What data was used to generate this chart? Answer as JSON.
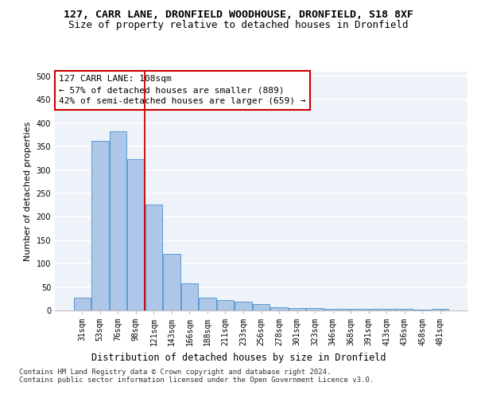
{
  "title": "127, CARR LANE, DRONFIELD WOODHOUSE, DRONFIELD, S18 8XF",
  "subtitle": "Size of property relative to detached houses in Dronfield",
  "xlabel": "Distribution of detached houses by size in Dronfield",
  "ylabel": "Number of detached properties",
  "categories": [
    "31sqm",
    "53sqm",
    "76sqm",
    "98sqm",
    "121sqm",
    "143sqm",
    "166sqm",
    "188sqm",
    "211sqm",
    "233sqm",
    "256sqm",
    "278sqm",
    "301sqm",
    "323sqm",
    "346sqm",
    "368sqm",
    "391sqm",
    "413sqm",
    "436sqm",
    "458sqm",
    "481sqm"
  ],
  "values": [
    28,
    362,
    383,
    323,
    226,
    120,
    58,
    28,
    22,
    18,
    14,
    7,
    5,
    5,
    4,
    4,
    4,
    3,
    3,
    1,
    4
  ],
  "bar_color": "#aec6e8",
  "bar_edge_color": "#5b9bd5",
  "highlight_line_color": "#cc0000",
  "annotation_line1": "127 CARR LANE: 108sqm",
  "annotation_line2": "← 57% of detached houses are smaller (889)",
  "annotation_line3": "42% of semi-detached houses are larger (659) →",
  "annotation_box_color": "#ffffff",
  "annotation_box_edge": "#cc0000",
  "ylim": [
    0,
    510
  ],
  "yticks": [
    0,
    50,
    100,
    150,
    200,
    250,
    300,
    350,
    400,
    450,
    500
  ],
  "footer": "Contains HM Land Registry data © Crown copyright and database right 2024.\nContains public sector information licensed under the Open Government Licence v3.0.",
  "bg_color": "#eef2f9",
  "grid_color": "#ffffff",
  "title_fontsize": 9.5,
  "subtitle_fontsize": 9,
  "xlabel_fontsize": 8.5,
  "ylabel_fontsize": 8,
  "tick_fontsize": 7,
  "annotation_fontsize": 8,
  "footer_fontsize": 6.5
}
